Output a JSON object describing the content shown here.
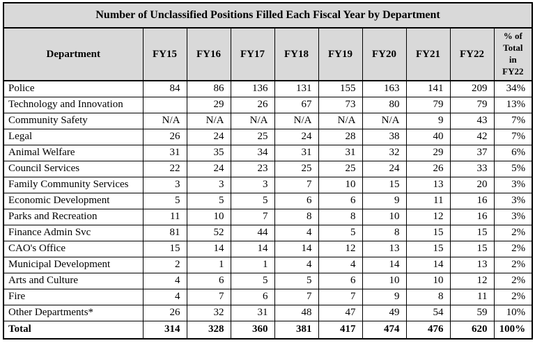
{
  "title": "Number of Unclassified Positions Filled Each Fiscal Year by Department",
  "table": {
    "columns": [
      "Department",
      "FY15",
      "FY16",
      "FY17",
      "FY18",
      "FY19",
      "FY20",
      "FY21",
      "FY22"
    ],
    "pct_header_lines": [
      "% of",
      "Total",
      "in",
      "FY22"
    ],
    "rows": [
      {
        "department": "Police",
        "values": [
          "84",
          "86",
          "136",
          "131",
          "155",
          "163",
          "141",
          "209"
        ],
        "pct": "34%"
      },
      {
        "department": "Technology and Innovation",
        "values": [
          "",
          "29",
          "26",
          "67",
          "73",
          "80",
          "79",
          "79"
        ],
        "pct": "13%"
      },
      {
        "department": "Community Safety",
        "values": [
          "N/A",
          "N/A",
          "N/A",
          "N/A",
          "N/A",
          "N/A",
          "9",
          "43"
        ],
        "pct": "7%"
      },
      {
        "department": "Legal",
        "values": [
          "26",
          "24",
          "25",
          "24",
          "28",
          "38",
          "40",
          "42"
        ],
        "pct": "7%"
      },
      {
        "department": "Animal Welfare",
        "values": [
          "31",
          "35",
          "34",
          "31",
          "31",
          "32",
          "29",
          "37"
        ],
        "pct": "6%"
      },
      {
        "department": "Council Services",
        "values": [
          "22",
          "24",
          "23",
          "25",
          "25",
          "24",
          "26",
          "33"
        ],
        "pct": "5%"
      },
      {
        "department": "Family Community Services",
        "values": [
          "3",
          "3",
          "3",
          "7",
          "10",
          "15",
          "13",
          "20"
        ],
        "pct": "3%"
      },
      {
        "department": "Economic Development",
        "values": [
          "5",
          "5",
          "5",
          "6",
          "6",
          "9",
          "11",
          "16"
        ],
        "pct": "3%"
      },
      {
        "department": "Parks and Recreation",
        "values": [
          "11",
          "10",
          "7",
          "8",
          "8",
          "10",
          "12",
          "16"
        ],
        "pct": "3%"
      },
      {
        "department": "Finance Admin Svc",
        "values": [
          "81",
          "52",
          "44",
          "4",
          "5",
          "8",
          "15",
          "15"
        ],
        "pct": "2%"
      },
      {
        "department": "CAO's Office",
        "values": [
          "15",
          "14",
          "14",
          "14",
          "12",
          "13",
          "15",
          "15"
        ],
        "pct": "2%"
      },
      {
        "department": "Municipal Development",
        "values": [
          "2",
          "1",
          "1",
          "4",
          "4",
          "14",
          "14",
          "13"
        ],
        "pct": "2%"
      },
      {
        "department": "Arts and Culture",
        "values": [
          "4",
          "6",
          "5",
          "5",
          "6",
          "10",
          "10",
          "12"
        ],
        "pct": "2%"
      },
      {
        "department": "Fire",
        "values": [
          "4",
          "7",
          "6",
          "7",
          "7",
          "9",
          "8",
          "11"
        ],
        "pct": "2%"
      },
      {
        "department": "Other Departments*",
        "values": [
          "26",
          "32",
          "31",
          "48",
          "47",
          "49",
          "54",
          "59"
        ],
        "pct": "10%"
      }
    ],
    "total_row": {
      "department": "Total",
      "values": [
        "314",
        "328",
        "360",
        "381",
        "417",
        "474",
        "476",
        "620"
      ],
      "pct": "100%"
    }
  },
  "colors": {
    "header_bg": "#d9d9d9",
    "row_bg": "#ffffff",
    "border": "#000000",
    "text": "#000000"
  }
}
